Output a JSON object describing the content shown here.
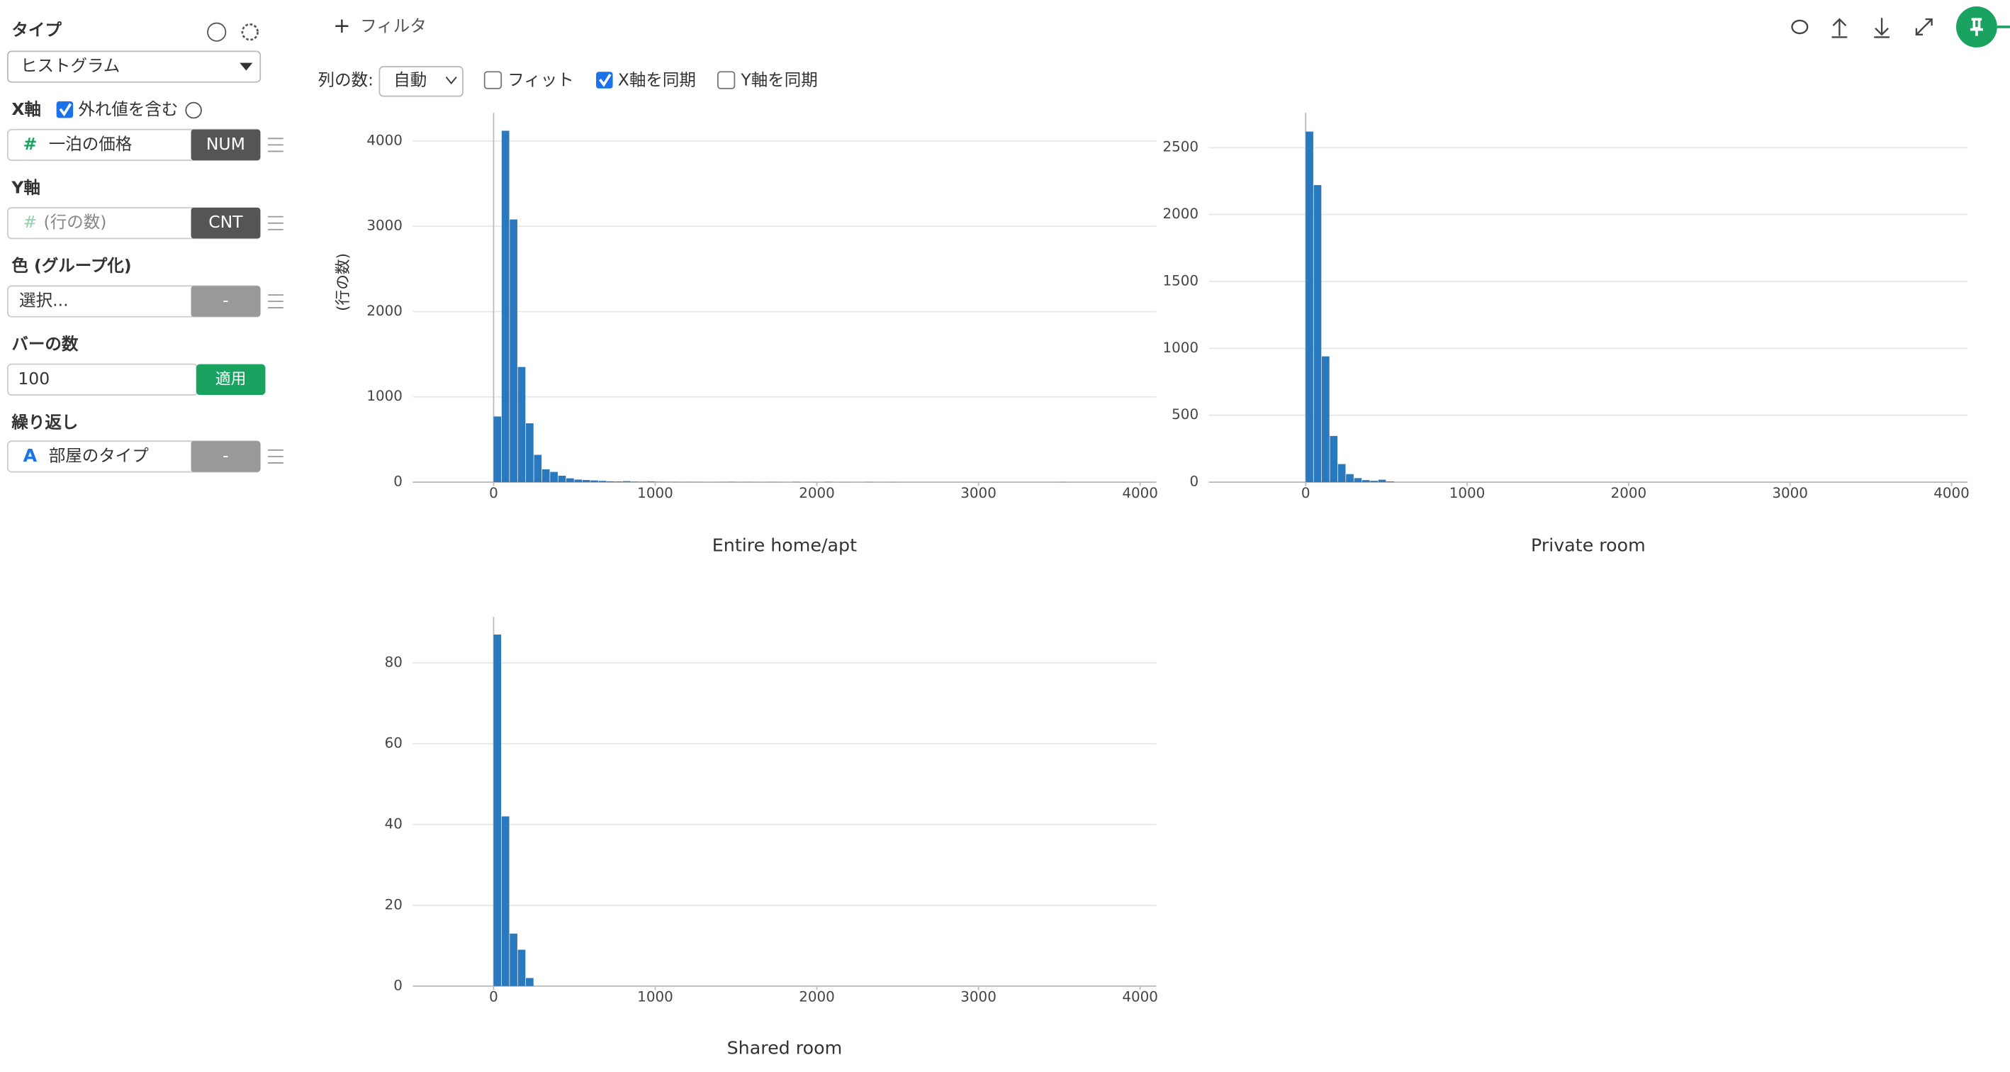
{
  "sidebar": {
    "type_label": "タイプ",
    "type_value": "ヒストグラム",
    "x_axis_label": "X軸",
    "outliers_label": "外れ値を含む",
    "x_icon": "#",
    "x_field": "一泊の価格",
    "x_badge": "NUM",
    "y_axis_label": "Y軸",
    "y_icon": "#",
    "y_field": "(行の数)",
    "y_badge": "CNT",
    "color_label": "色 (グループ化)",
    "color_field": "選択...",
    "color_badge": "-",
    "bars_label": "バーの数",
    "bars_value": "100",
    "apply_button": "適用",
    "repeat_label": "繰り返し",
    "repeat_icon": "A",
    "repeat_field": "部屋のタイプ",
    "repeat_badge": "-"
  },
  "toolbar": {
    "plus": "+",
    "filter": "フィルタ",
    "columns_label": "列の数:",
    "columns_value": "自動",
    "fit": "フィット",
    "sync_x": "X軸を同期",
    "sync_y": "Y軸を同期"
  },
  "chart_data": [
    {
      "type": "histogram",
      "title": "Entire home/apt",
      "y_label": "(行の数)",
      "color": "#2a78bd",
      "grid": true,
      "bins": [
        0,
        50,
        100,
        150,
        200,
        250,
        300,
        350,
        400,
        450,
        500,
        550,
        600,
        650,
        700,
        750,
        800,
        850,
        900,
        950,
        1000,
        1050,
        1100,
        1150,
        1200,
        1250,
        1300,
        1350,
        1400,
        1450,
        1500,
        1550,
        1600,
        1650,
        1700,
        1750,
        1800,
        1850,
        1900,
        1950,
        2000,
        2050,
        2100,
        2150,
        2200,
        2250,
        2300,
        2350,
        2400,
        2450,
        2500,
        2550,
        2600,
        2650,
        2700,
        2750,
        2800,
        2850,
        2900,
        2950,
        3000,
        3050,
        3100,
        3150,
        3200,
        3250,
        3300,
        3350,
        3400,
        3450,
        3500,
        3550
      ],
      "values": [
        770,
        4120,
        3080,
        1350,
        690,
        320,
        150,
        120,
        75,
        45,
        30,
        25,
        20,
        15,
        10,
        8,
        12,
        6,
        5,
        8,
        4,
        3,
        3,
        2,
        2,
        2,
        1,
        1,
        2,
        3,
        1,
        2,
        1,
        1,
        2,
        1,
        0,
        3,
        0,
        1,
        0,
        3,
        0,
        1,
        0,
        0,
        2,
        0,
        0,
        1,
        0,
        0,
        0,
        0,
        0,
        0,
        0,
        0,
        0,
        0,
        0,
        0,
        0,
        0,
        0,
        0,
        0,
        0,
        0,
        0,
        2
      ],
      "xlim": [
        -500,
        4100
      ],
      "ylim": [
        0,
        4330
      ],
      "xticks": [
        0,
        1000,
        2000,
        3000,
        4000
      ],
      "yticks": [
        0,
        1000,
        2000,
        3000,
        4000
      ]
    },
    {
      "type": "histogram",
      "title": "Private room",
      "color": "#2a78bd",
      "grid": true,
      "bins": [
        0,
        50,
        100,
        150,
        200,
        250,
        300,
        350,
        400,
        450,
        500,
        550
      ],
      "values": [
        2620,
        2220,
        940,
        345,
        135,
        60,
        30,
        15,
        10,
        18,
        5
      ],
      "xlim": [
        -600,
        4100
      ],
      "ylim": [
        0,
        2760
      ],
      "xticks": [
        0,
        1000,
        2000,
        3000,
        4000
      ],
      "yticks": [
        0,
        500,
        1000,
        1500,
        2000,
        2500
      ]
    },
    {
      "type": "histogram",
      "title": "Shared room",
      "color": "#2a78bd",
      "grid": true,
      "bins": [
        0,
        50,
        100,
        150,
        200,
        250
      ],
      "values": [
        87,
        42,
        13,
        9,
        2
      ],
      "xlim": [
        -500,
        4100
      ],
      "ylim": [
        0,
        91.4
      ],
      "xticks": [
        0,
        1000,
        2000,
        3000,
        4000
      ],
      "yticks": [
        0,
        20,
        40,
        60,
        80
      ]
    }
  ]
}
